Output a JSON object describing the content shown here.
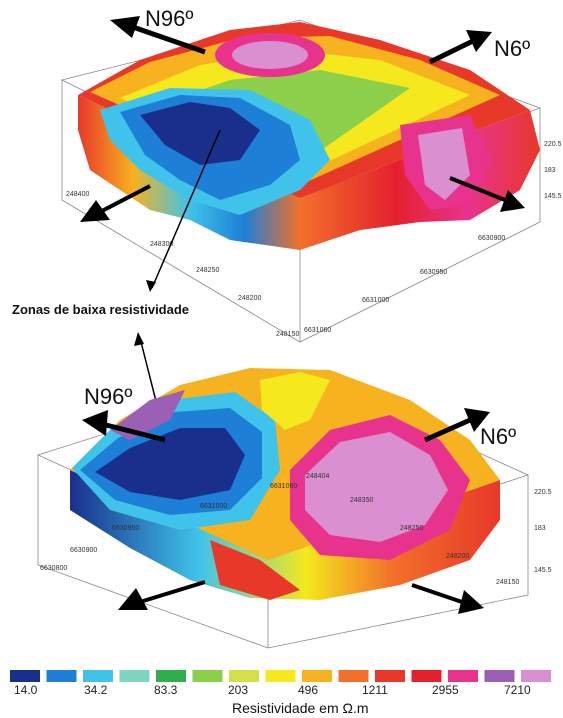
{
  "top_block": {
    "directions": {
      "left": "N96º",
      "right": "N6º"
    },
    "ticks_front": [
      "248400",
      "248300",
      "248250",
      "248200",
      "248150"
    ],
    "ticks_side": [
      "6631060",
      "6631000",
      "6630950",
      "6630900"
    ],
    "ticks_vertical": [
      "220.5",
      "183",
      "145.5"
    ]
  },
  "annotation": "Zonas de baixa resistividade",
  "bottom_block": {
    "directions": {
      "left": "N96º",
      "right": "N6º"
    },
    "ticks_left": [
      "6630800",
      "6630900",
      "6630950",
      "6631000",
      "6631060"
    ],
    "ticks_mid": [
      "248404",
      "248350"
    ],
    "ticks_right": [
      "248250",
      "248200",
      "248150"
    ],
    "ticks_vertical": [
      "220.5",
      "183",
      "145.5"
    ]
  },
  "legend": {
    "title": "Resistividade em Ω.m",
    "tick_labels": [
      "14.0",
      "34.2",
      "83.3",
      "203",
      "496",
      "1211",
      "2955",
      "7210"
    ],
    "colors": [
      "#1a2f8c",
      "#1e7fd6",
      "#3fc3ea",
      "#7ed6c2",
      "#2fae4b",
      "#8ccf4a",
      "#d4e04a",
      "#f5e81c",
      "#f7b21f",
      "#f2702a",
      "#e8382a",
      "#e5202d",
      "#e8338e",
      "#9b5fb5",
      "#d98fd0"
    ]
  }
}
